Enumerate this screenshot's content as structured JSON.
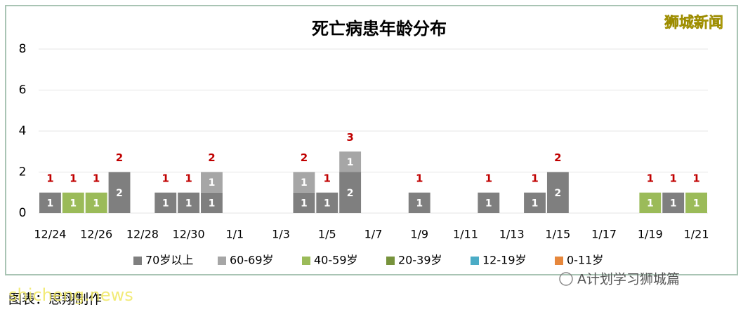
{
  "chart_data": {
    "type": "stacked_bar",
    "title": "死亡病患年龄分布",
    "categories": [
      "12/24",
      null,
      "12/26",
      null,
      "12/28",
      null,
      "12/30",
      null,
      "1/1",
      null,
      "1/3",
      null,
      "1/5",
      null,
      "1/7",
      null,
      "1/9",
      null,
      "1/11",
      null,
      "1/13",
      null,
      "1/15",
      null,
      "1/17",
      null,
      "1/19",
      null,
      "1/21"
    ],
    "series": [
      {
        "name": "70岁以上",
        "color": "#7f7f7f",
        "values": [
          1,
          null,
          null,
          2,
          null,
          1,
          1,
          1,
          null,
          null,
          null,
          1,
          1,
          2,
          null,
          null,
          1,
          null,
          null,
          1,
          null,
          1,
          2,
          null,
          null,
          null,
          null,
          1,
          null
        ]
      },
      {
        "name": "60-69岁",
        "color": "#a6a6a6",
        "values": [
          null,
          null,
          null,
          null,
          null,
          null,
          null,
          1,
          null,
          null,
          null,
          1,
          null,
          1,
          null,
          null,
          null,
          null,
          null,
          null,
          null,
          null,
          null,
          null,
          null,
          null,
          null,
          null,
          null
        ]
      },
      {
        "name": "40-59岁",
        "color": "#9bbb59",
        "values": [
          null,
          1,
          1,
          null,
          null,
          null,
          null,
          null,
          null,
          null,
          null,
          null,
          null,
          null,
          null,
          null,
          null,
          null,
          null,
          null,
          null,
          null,
          null,
          null,
          null,
          null,
          1,
          null,
          1
        ]
      },
      {
        "name": "20-39岁",
        "color": "#77933c",
        "values": [
          null,
          null,
          null,
          null,
          null,
          null,
          null,
          null,
          null,
          null,
          null,
          null,
          null,
          null,
          null,
          null,
          null,
          null,
          null,
          null,
          null,
          null,
          null,
          null,
          null,
          null,
          null,
          null,
          null
        ]
      },
      {
        "name": "12-19岁",
        "color": "#4bacc6",
        "values": [
          null,
          null,
          null,
          null,
          null,
          null,
          null,
          null,
          null,
          null,
          null,
          null,
          null,
          null,
          null,
          null,
          null,
          null,
          null,
          null,
          null,
          null,
          null,
          null,
          null,
          null,
          null,
          null,
          null
        ]
      },
      {
        "name": "0-11岁",
        "color": "#e6873c",
        "values": [
          null,
          null,
          null,
          null,
          null,
          null,
          null,
          null,
          null,
          null,
          null,
          null,
          null,
          null,
          null,
          null,
          null,
          null,
          null,
          null,
          null,
          null,
          null,
          null,
          null,
          null,
          null,
          null,
          null
        ]
      }
    ],
    "totals": [
      1,
      1,
      1,
      2,
      null,
      1,
      1,
      2,
      null,
      null,
      null,
      2,
      1,
      3,
      null,
      null,
      1,
      null,
      null,
      1,
      null,
      1,
      2,
      null,
      null,
      null,
      1,
      1,
      1
    ],
    "total_color": "#c00000",
    "ylim": [
      0,
      8
    ],
    "yticks": [
      0,
      2,
      4,
      6,
      8
    ],
    "grid": true,
    "legend": "bottom"
  },
  "watermark": "狮城新闻",
  "caption": "图表：思翔制作",
  "site_watermark": "shicheng.news",
  "wechat_watermark": "A计划学习狮城篇"
}
